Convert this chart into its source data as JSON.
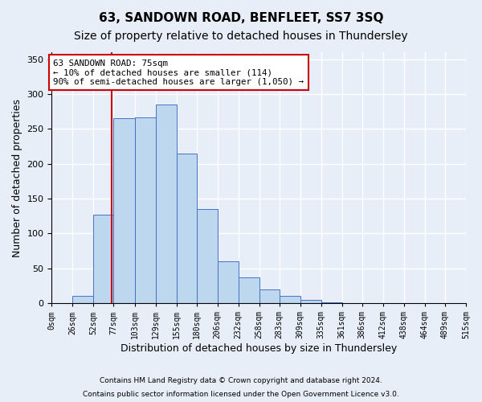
{
  "title": "63, SANDOWN ROAD, BENFLEET, SS7 3SQ",
  "subtitle": "Size of property relative to detached houses in Thundersley",
  "xlabel": "Distribution of detached houses by size in Thundersley",
  "ylabel": "Number of detached properties",
  "footnote1": "Contains HM Land Registry data © Crown copyright and database right 2024.",
  "footnote2": "Contains public sector information licensed under the Open Government Licence v3.0.",
  "bin_labels": [
    "0sqm",
    "26sqm",
    "52sqm",
    "77sqm",
    "103sqm",
    "129sqm",
    "155sqm",
    "180sqm",
    "206sqm",
    "232sqm",
    "258sqm",
    "283sqm",
    "309sqm",
    "335sqm",
    "361sqm",
    "386sqm",
    "412sqm",
    "438sqm",
    "464sqm",
    "489sqm",
    "515sqm"
  ],
  "hist_values": [
    0,
    10,
    127,
    265,
    267,
    285,
    215,
    135,
    60,
    37,
    20,
    11,
    5,
    1,
    0,
    0,
    0,
    0,
    0,
    0
  ],
  "bar_color": "#bdd7ee",
  "bar_edge_color": "#4472c4",
  "red_line_x": 75,
  "annotation_text": "63 SANDOWN ROAD: 75sqm\n← 10% of detached houses are smaller (114)\n90% of semi-detached houses are larger (1,050) →",
  "annotation_box_color": "#ffffff",
  "annotation_box_edge": "#cc0000",
  "ylim": [
    0,
    360
  ],
  "bin_edges": [
    0,
    26,
    52,
    77,
    103,
    129,
    155,
    180,
    206,
    232,
    258,
    283,
    309,
    335,
    361,
    386,
    412,
    438,
    464,
    489,
    515
  ],
  "background_color": "#e8eef8",
  "plot_bg_color": "#e8eef8",
  "grid_color": "#ffffff",
  "title_fontsize": 11,
  "subtitle_fontsize": 10,
  "axis_fontsize": 9
}
